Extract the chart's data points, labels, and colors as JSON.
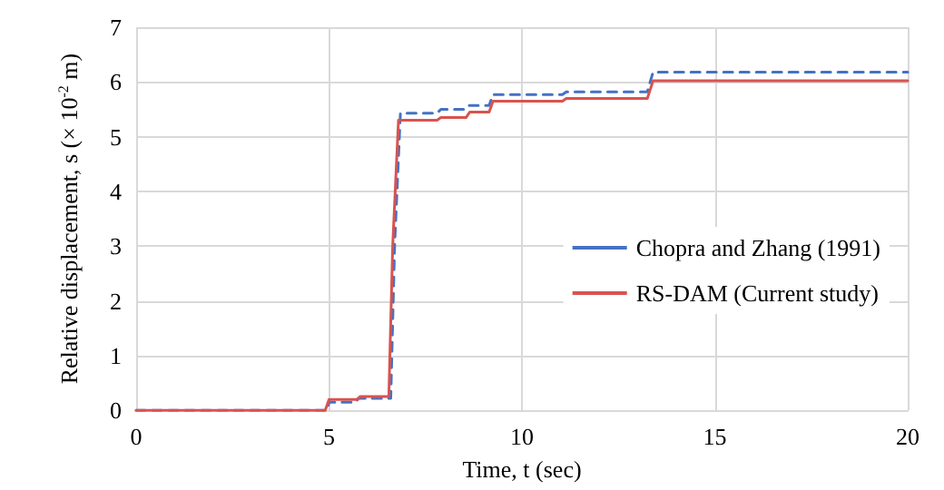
{
  "chart_data": {
    "type": "line",
    "xlabel": "Time, t (sec)",
    "ylabel": "Relative displacement, s (× 10$^{-2}$ m)",
    "xlim": [
      0,
      20
    ],
    "xticks": [
      0,
      5,
      10,
      15,
      20
    ],
    "ylim": [
      0,
      7
    ],
    "yticks": [
      0,
      1,
      2,
      3,
      4,
      5,
      6,
      7
    ],
    "grid": true,
    "legend": "right",
    "marker": "none",
    "series": [
      {
        "name": "Chopra and Zhang (1991)",
        "color": "#4472c4",
        "line_style": "dashed",
        "x": [
          0,
          4.95,
          5.0,
          5.7,
          5.75,
          6.6,
          6.7,
          6.85,
          7.8,
          7.9,
          8.5,
          8.6,
          9.15,
          9.25,
          11.05,
          11.15,
          13.25,
          13.4,
          20
        ],
        "values": [
          0,
          0,
          0.15,
          0.15,
          0.22,
          0.22,
          3.0,
          5.43,
          5.43,
          5.5,
          5.5,
          5.57,
          5.57,
          5.77,
          5.77,
          5.82,
          5.82,
          6.18,
          6.18
        ]
      },
      {
        "name": "RS-DAM (Current study)",
        "color": "#d9534f",
        "line_style": "solid",
        "x": [
          0,
          4.9,
          5.0,
          5.75,
          5.8,
          6.55,
          6.65,
          6.8,
          7.8,
          7.9,
          8.55,
          8.65,
          9.15,
          9.25,
          11.05,
          11.15,
          13.25,
          13.4,
          20
        ],
        "values": [
          0,
          0,
          0.2,
          0.2,
          0.25,
          0.25,
          3.0,
          5.3,
          5.3,
          5.35,
          5.35,
          5.45,
          5.45,
          5.65,
          5.65,
          5.7,
          5.7,
          6.02,
          6.02
        ]
      }
    ]
  }
}
